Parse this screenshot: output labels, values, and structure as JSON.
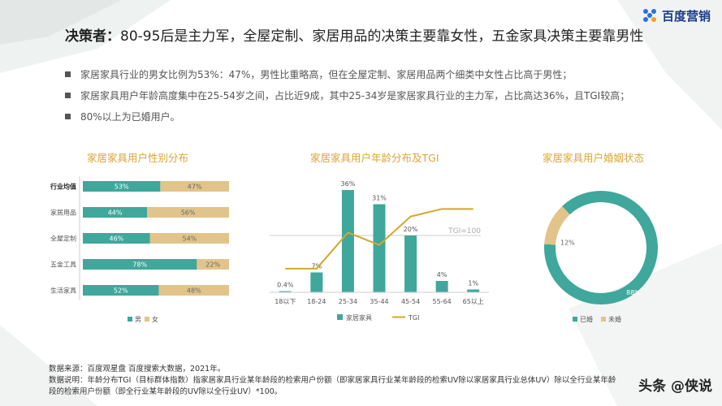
{
  "header": {
    "title_bold": "决策者：",
    "title_rest": "80-95后是主力军，全屋定制、家居用品的决策主要靠女性，五金家具决策主要靠男性",
    "logo_text": "百度营销"
  },
  "bullets": [
    "家居家具行业的男女比例为53%：47%，男性比重略高，但在全屋定制、家居用品两个细类中女性占比高于男性；",
    "家居家具用户年龄高度集中在25-54岁之间，占比近9成，其中25-34岁是家居家具行业的主力军，占比高达36%，且TGI较高；",
    "80%以上为已婚用户。"
  ],
  "colors": {
    "teal": "#3fa79c",
    "gold": "#e2c48a",
    "line": "#d4a72c",
    "title": "#d9a63a"
  },
  "chart_data": [
    {
      "type": "bar",
      "orientation": "horizontal",
      "stacked": true,
      "title": "家居家具用户性别分布",
      "categories": [
        "行业均值",
        "家居用品",
        "全屋定制",
        "五金工具",
        "生活家具"
      ],
      "series": [
        {
          "name": "男",
          "values": [
            53,
            44,
            46,
            78,
            52
          ],
          "labels": [
            "53%",
            "44%",
            "46%",
            "78%",
            "52%"
          ]
        },
        {
          "name": "女",
          "values": [
            47,
            56,
            54,
            22,
            48
          ],
          "labels": [
            "47%",
            "56%",
            "54%",
            "22%",
            "48%"
          ]
        }
      ],
      "legend": "bottom"
    },
    {
      "type": "bar",
      "title": "家居家具用户年龄分布及TGI",
      "categories": [
        "18以下",
        "18-24",
        "25-34",
        "35-44",
        "45-54",
        "55-64",
        "65以上"
      ],
      "series": [
        {
          "name": "家居家具",
          "values": [
            0.4,
            7,
            36,
            31,
            20,
            4,
            1
          ],
          "labels": [
            "0.4%",
            "7%",
            "36%",
            "31%",
            "20%",
            "4%",
            "1%"
          ]
        },
        {
          "name": "TGI",
          "type": "line",
          "values": [
            65,
            65,
            103,
            90,
            120,
            128,
            128
          ]
        }
      ],
      "reference_line": {
        "value": 100,
        "label": "TGI=100"
      },
      "ylim": [
        0,
        40
      ],
      "tgi_lim": [
        40,
        160
      ],
      "legend": "bottom"
    },
    {
      "type": "pie",
      "donut": true,
      "title": "家居家具用户婚姻状态",
      "categories": [
        "已婚",
        "未婚"
      ],
      "values": [
        88,
        12
      ],
      "labels": [
        "88%",
        "12%"
      ],
      "legend": "bottom"
    }
  ],
  "footer": {
    "line1": "数据来源：百度观星盘  百度搜索大数据，2021年。",
    "line2": "数据说明：年龄分布TGI（目标群体指数）指家居家具行业某年龄段的检索用户份额（即家居家具行业某年龄段的检索UV除以家居家具行业总体UV）除以全行业某年龄",
    "line3": "段的检索用户份额（即全行业某年龄段的UV除以全行业UV）*100。"
  },
  "watermark": "头条 @侠说"
}
